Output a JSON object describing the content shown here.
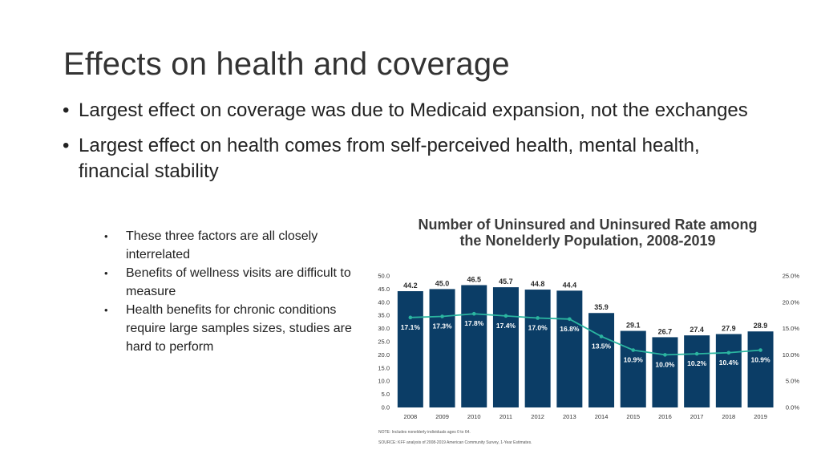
{
  "slide": {
    "title": "Effects on health and coverage",
    "bullets": [
      "Largest effect on coverage was due to Medicaid expansion, not the exchanges",
      "Largest effect on health comes from self-perceived health, mental health, financial stability"
    ],
    "sub_bullets": [
      "These three factors are all closely interrelated",
      "Benefits of wellness visits are difficult to measure",
      "Health benefits for chronic conditions require large samples sizes, studies are hard to perform"
    ]
  },
  "chart_data": {
    "type": "bar",
    "title_line1": "Number of Uninsured and Uninsured Rate among",
    "title_line2": "the Nonelderly Population, 2008-2019",
    "categories": [
      "2008",
      "2009",
      "2010",
      "2011",
      "2012",
      "2013",
      "2014",
      "2015",
      "2016",
      "2017",
      "2018",
      "2019"
    ],
    "series": [
      {
        "values": [
          44.2,
          45.0,
          46.5,
          45.7,
          44.8,
          44.4,
          35.9,
          29.1,
          26.7,
          27.4,
          27.9,
          28.9
        ]
      },
      {
        "values": [
          17.1,
          17.3,
          17.8,
          17.4,
          17.0,
          16.8,
          13.5,
          10.9,
          10.0,
          10.2,
          10.4,
          10.9
        ]
      }
    ],
    "bar_labels": [
      "44.2",
      "45.0",
      "46.5",
      "45.7",
      "44.8",
      "44.4",
      "35.9",
      "29.1",
      "26.7",
      "27.4",
      "27.9",
      "28.9"
    ],
    "rate_labels": [
      "17.1%",
      "17.3%",
      "17.8%",
      "17.4%",
      "17.0%",
      "16.8%",
      "13.5%",
      "10.9%",
      "10.0%",
      "10.2%",
      "10.4%",
      "10.9%"
    ],
    "y_left_ticks": [
      "0.0",
      "5.0",
      "10.0",
      "15.0",
      "20.0",
      "25.0",
      "30.0",
      "35.0",
      "40.0",
      "45.0",
      "50.0"
    ],
    "y_right_ticks": [
      "0.0%",
      "5.0%",
      "10.0%",
      "15.0%",
      "20.0%",
      "25.0%"
    ],
    "ylim_left": [
      0,
      50
    ],
    "ylim_right": [
      0,
      25
    ],
    "note": "NOTE: Includes nonelderly individuals ages 0 to 64.",
    "source": "SOURCE: KFF analysis of 2008-2019 American Community Survey, 1-Year Estimates.",
    "colors": {
      "bar": "#0b3d66",
      "line": "#2bb5a0",
      "bar_label": "#2b2b2b",
      "rate_label": "#ffffff"
    }
  }
}
